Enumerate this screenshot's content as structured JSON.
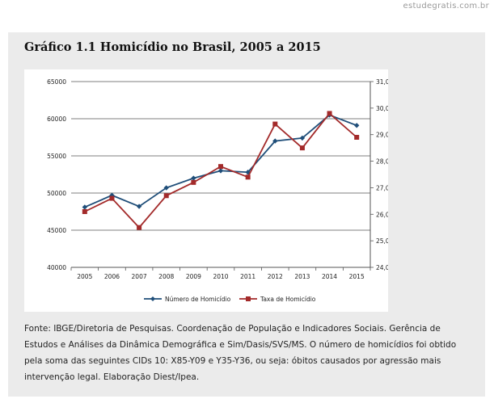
{
  "watermark": "estudegratis.com.br",
  "figure": {
    "title": "Gráfico 1.1 Homicídio no Brasil, 2005 a 2015",
    "source_note": "Fonte: IBGE/Diretoria de Pesquisas. Coordenação de População e Indicadores Sociais. Gerência de Estudos e Análises da Dinâmica Demográfica e Sim/Dasis/SVS/MS. O número de homicídios foi obtido pela soma das seguintes CIDs 10: X85-Y09 e Y35-Y36, ou seja: óbitos causados por agressão mais intervenção legal. Elaboração Diest/Ipea."
  },
  "chart_data": {
    "type": "line",
    "title": "Gráfico 1.1 Homicídio no Brasil, 2005 a 2015",
    "categories": [
      "2005",
      "2006",
      "2007",
      "2008",
      "2009",
      "2010",
      "2011",
      "2012",
      "2013",
      "2014",
      "2015"
    ],
    "y_left": {
      "range": [
        40000,
        65000
      ],
      "ticks": [
        "40000",
        "45000",
        "50000",
        "55000",
        "60000",
        "65000"
      ]
    },
    "y_right": {
      "range": [
        24.0,
        31.0
      ],
      "ticks": [
        "24,0",
        "25,0",
        "26,0",
        "27,0",
        "28,0",
        "29,0",
        "30,0",
        "31,0"
      ]
    },
    "gridlines": "horizontal",
    "legend_position": "bottom",
    "series": [
      {
        "name": "Número de Homicídio",
        "axis": "left",
        "color": "#1f4e79",
        "marker": "diamond",
        "values": [
          48100,
          49700,
          48200,
          50700,
          52000,
          53000,
          52800,
          57000,
          57400,
          60500,
          59100
        ]
      },
      {
        "name": "Taxa de Homicídio",
        "axis": "right",
        "color": "#a32a2a",
        "marker": "square",
        "values": [
          26.1,
          26.6,
          25.5,
          26.7,
          27.2,
          27.8,
          27.4,
          29.4,
          28.5,
          29.8,
          28.9
        ]
      }
    ]
  }
}
